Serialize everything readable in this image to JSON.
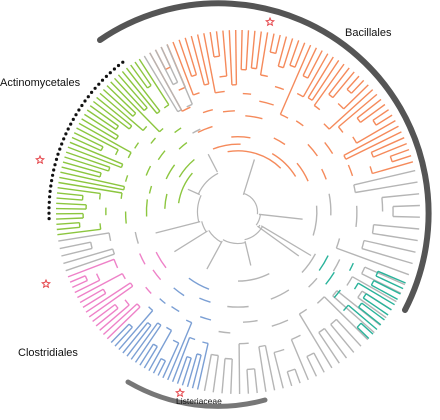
{
  "labels": {
    "bacillales": "Bacillales",
    "actinomycetales": "Actinomycetales",
    "clostridiales": "Clostridiales",
    "listeriaceae": "Listeriaceae"
  },
  "colors": {
    "bacillales": "#f58a5b",
    "actinomycetales": "#8cc63f",
    "clostridiales": "#ee82c8",
    "blue_clade": "#7b9fd4",
    "teal_clade": "#2ab39b",
    "gray_branches": "#b5b5b5",
    "arc_bars": "#555555",
    "star_markers": "#e5484d",
    "dot_markers": "#111111"
  },
  "icons": {
    "star": "hollow-red-star",
    "dot": "black-filled-circle"
  }
}
